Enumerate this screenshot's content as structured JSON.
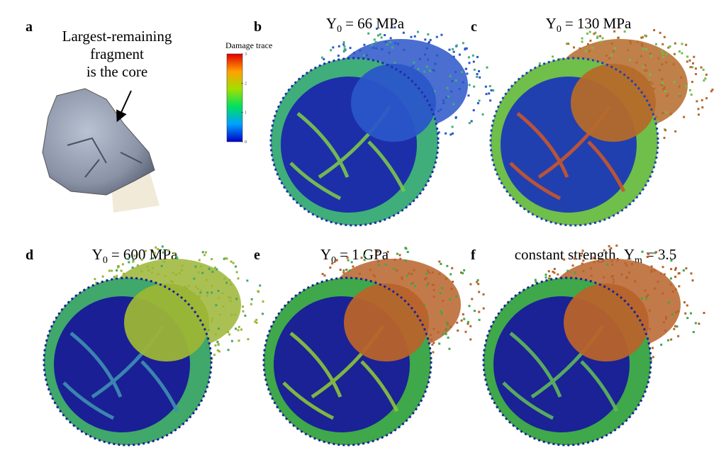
{
  "figure": {
    "panel_a": {
      "label": "a",
      "annotation": [
        "Largest-remaining",
        "fragment",
        "is the core"
      ]
    },
    "colorbar": {
      "label": "Damage trace",
      "lim": [
        0,
        3
      ],
      "ticks": [
        0,
        1,
        2,
        3
      ]
    },
    "panels": [
      {
        "label": "b",
        "symbol": "Y",
        "sub": "0",
        "text": "= 66 MPa",
        "ring_color": "#3fae7a",
        "core_color": "#1d2fa8",
        "spray_color": "#2a56c9",
        "crack_color": "#7bc84a"
      },
      {
        "label": "c",
        "symbol": "Y",
        "sub": "0",
        "text": "= 130 MPa",
        "ring_color": "#6fbf4a",
        "core_color": "#2140b0",
        "spray_color": "#b56a2a",
        "crack_color": "#c9562b"
      },
      {
        "label": "d",
        "symbol": "Y",
        "sub": "0",
        "text": "= 600 MPa",
        "ring_color": "#3fa86a",
        "core_color": "#1a1f96",
        "spray_color": "#9cb535",
        "crack_color": "#3f8fb0"
      },
      {
        "label": "e",
        "symbol": "Y",
        "sub": "0",
        "text": "= 1 GPa",
        "ring_color": "#3fa84a",
        "core_color": "#1a2296",
        "spray_color": "#b8632a",
        "crack_color": "#8cc43a"
      },
      {
        "label": "f",
        "prefix": "constant strength,",
        "symbol": "Y",
        "sub": "m",
        "text": "= 3.5",
        "ring_color": "#3fa84a",
        "core_color": "#1a2296",
        "spray_color": "#b8632a",
        "crack_color": "#5fb85a"
      }
    ]
  }
}
